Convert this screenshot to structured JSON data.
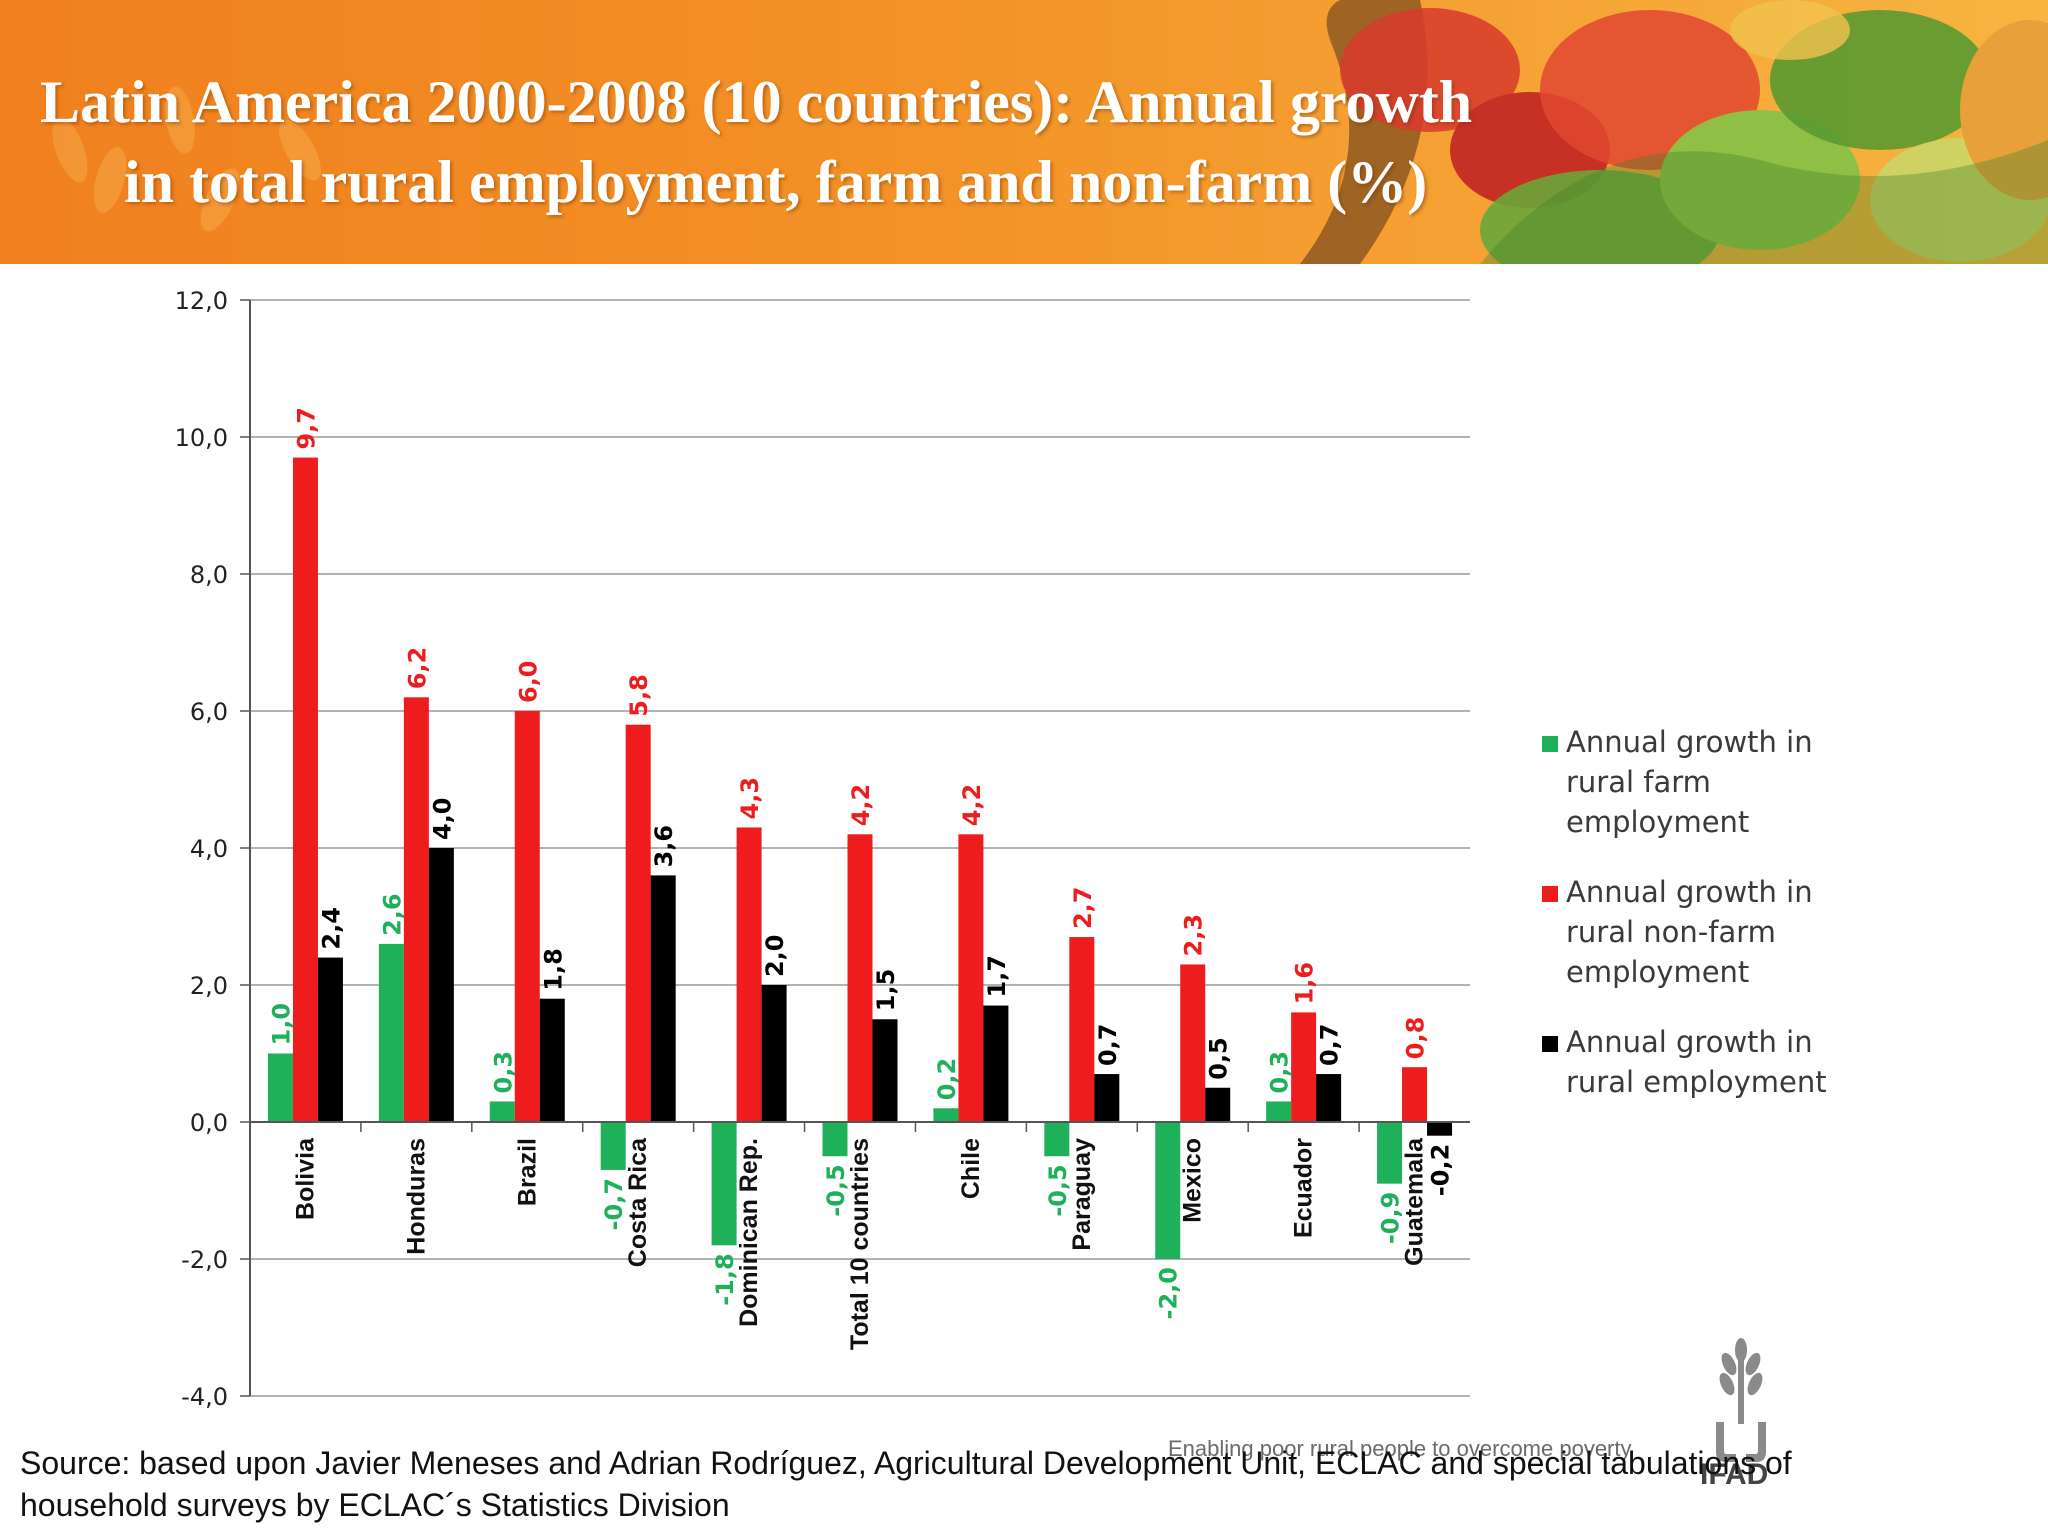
{
  "title": {
    "line1": "Latin America 2000-2008 (10 countries): Annual growth",
    "line2": "in total rural employment, farm and non-farm (%)"
  },
  "colors": {
    "farm": "#1fb15a",
    "nonfarm": "#ee1c1c",
    "total": "#000000"
  },
  "chart_data": {
    "type": "bar",
    "categories": [
      "Bolivia",
      "Honduras",
      "Brazil",
      "Costa Rica",
      "Dominican Rep.",
      "Total 10 countries",
      "Chile",
      "Paraguay",
      "Mexico",
      "Ecuador",
      "Guatemala"
    ],
    "series": [
      {
        "name": "Annual growth in rural farm employment",
        "color": "#1fb15a",
        "values": [
          1.0,
          2.6,
          0.3,
          -0.7,
          -1.8,
          -0.5,
          0.2,
          -0.5,
          -2.0,
          0.3,
          -0.9
        ]
      },
      {
        "name": "Annual growth in rural non-farm employment",
        "color": "#ee1c1c",
        "values": [
          9.7,
          6.2,
          6.0,
          5.8,
          4.3,
          4.2,
          4.2,
          2.7,
          2.3,
          1.6,
          0.8
        ]
      },
      {
        "name": "Annual growth in rural employment",
        "color": "#000000",
        "values": [
          2.4,
          4.0,
          1.8,
          3.6,
          2.0,
          1.5,
          1.7,
          0.7,
          0.5,
          0.7,
          -0.2
        ]
      }
    ],
    "yticks": [
      "12,0",
      "10,0",
      "8,0",
      "6,0",
      "4,0",
      "2,0",
      "0,0",
      "-2,0",
      "-4,0"
    ],
    "ylim": [
      -4,
      12
    ],
    "grid": true,
    "legend": "right",
    "decimal_separator": ","
  },
  "legend": {
    "farm": "Annual growth in rural farm employment",
    "nonfarm": "Annual growth in rural non-farm employment",
    "total": "Annual growth in rural employment"
  },
  "footer": {
    "source": "Source: based upon Javier Meneses and Adrian Rodríguez, Agricultural Development Unit, ECLAC and special tabulations of household surveys by ECLAC´s Statistics Division",
    "tagline": "Enabling poor rural people to overcome poverty",
    "logo_text": "IFAD"
  }
}
